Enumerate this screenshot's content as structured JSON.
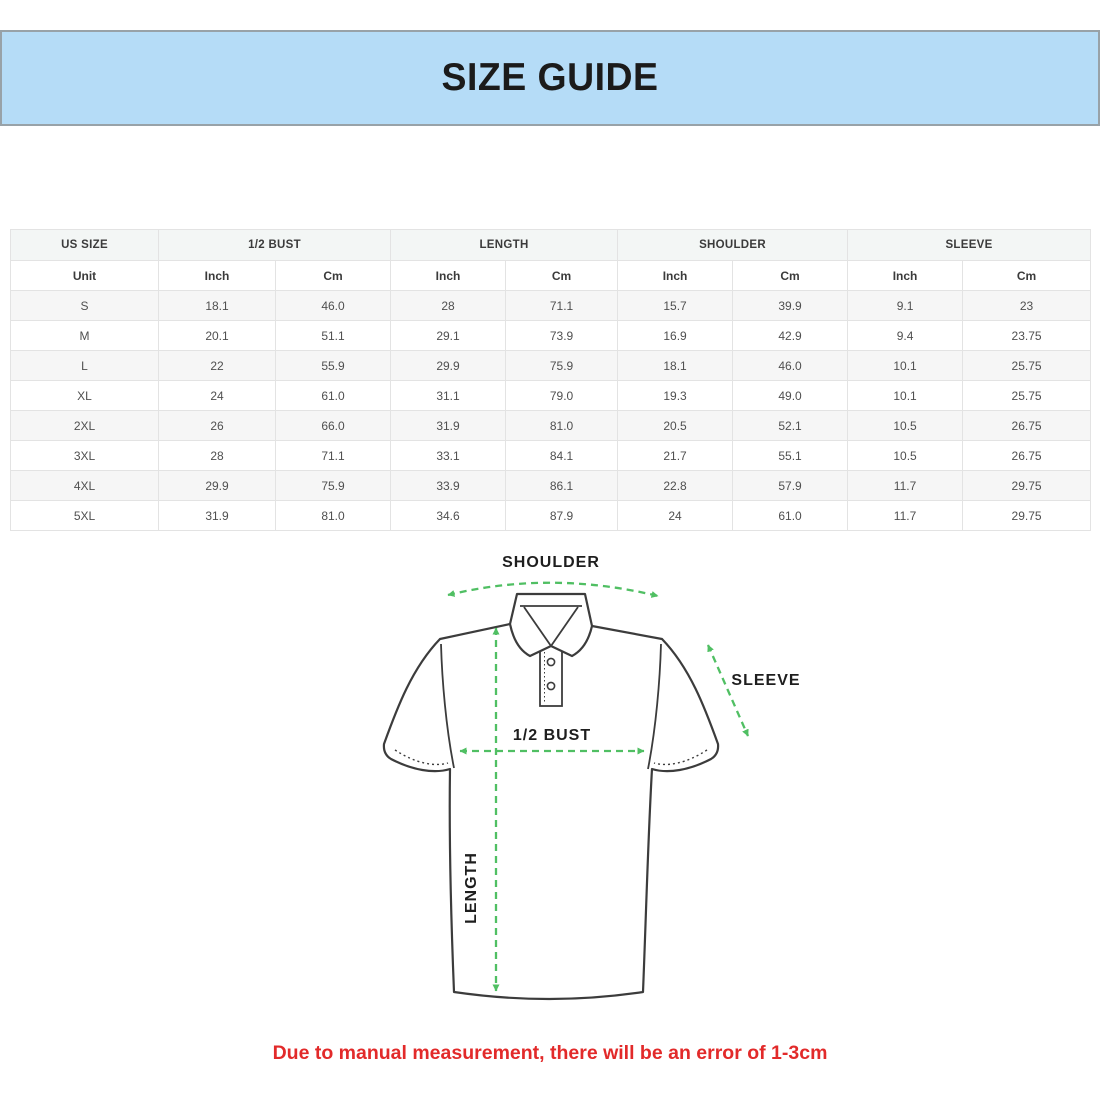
{
  "page": {
    "title": "SIZE GUIDE",
    "note": "Due to manual measurement, there will be an error of 1-3cm"
  },
  "table": {
    "groups": [
      {
        "label": "US SIZE",
        "span": 1
      },
      {
        "label": "1/2 BUST",
        "span": 2
      },
      {
        "label": "LENGTH",
        "span": 2
      },
      {
        "label": "SHOULDER",
        "span": 2
      },
      {
        "label": "SLEEVE",
        "span": 2
      }
    ],
    "unit_row": [
      "Unit",
      "Inch",
      "Cm",
      "Inch",
      "Cm",
      "Inch",
      "Cm",
      "Inch",
      "Cm"
    ],
    "rows": [
      [
        "S",
        "18.1",
        "46.0",
        "28",
        "71.1",
        "15.7",
        "39.9",
        "9.1",
        "23"
      ],
      [
        "M",
        "20.1",
        "51.1",
        "29.1",
        "73.9",
        "16.9",
        "42.9",
        "9.4",
        "23.75"
      ],
      [
        "L",
        "22",
        "55.9",
        "29.9",
        "75.9",
        "18.1",
        "46.0",
        "10.1",
        "25.75"
      ],
      [
        "XL",
        "24",
        "61.0",
        "31.1",
        "79.0",
        "19.3",
        "49.0",
        "10.1",
        "25.75"
      ],
      [
        "2XL",
        "26",
        "66.0",
        "31.9",
        "81.0",
        "20.5",
        "52.1",
        "10.5",
        "26.75"
      ],
      [
        "3XL",
        "28",
        "71.1",
        "33.1",
        "84.1",
        "21.7",
        "55.1",
        "10.5",
        "26.75"
      ],
      [
        "4XL",
        "29.9",
        "75.9",
        "33.9",
        "86.1",
        "22.8",
        "57.9",
        "11.7",
        "29.75"
      ],
      [
        "5XL",
        "31.9",
        "81.0",
        "34.6",
        "87.9",
        "24",
        "61.0",
        "11.7",
        "29.75"
      ]
    ]
  },
  "diagram": {
    "labels": {
      "shoulder": "SHOULDER",
      "sleeve": "SLEEVE",
      "bust": "1/2 BUST",
      "length": "LENGTH"
    }
  },
  "colors": {
    "banner_bg": "#b5dcf7",
    "banner_border": "#98a2a8",
    "arrow_green": "#50bf63",
    "shirt_outline": "#3c3c3c",
    "note_red": "#e22a2a",
    "table_border": "#e3e3e3",
    "alt_row_bg": "#f6f6f6"
  }
}
